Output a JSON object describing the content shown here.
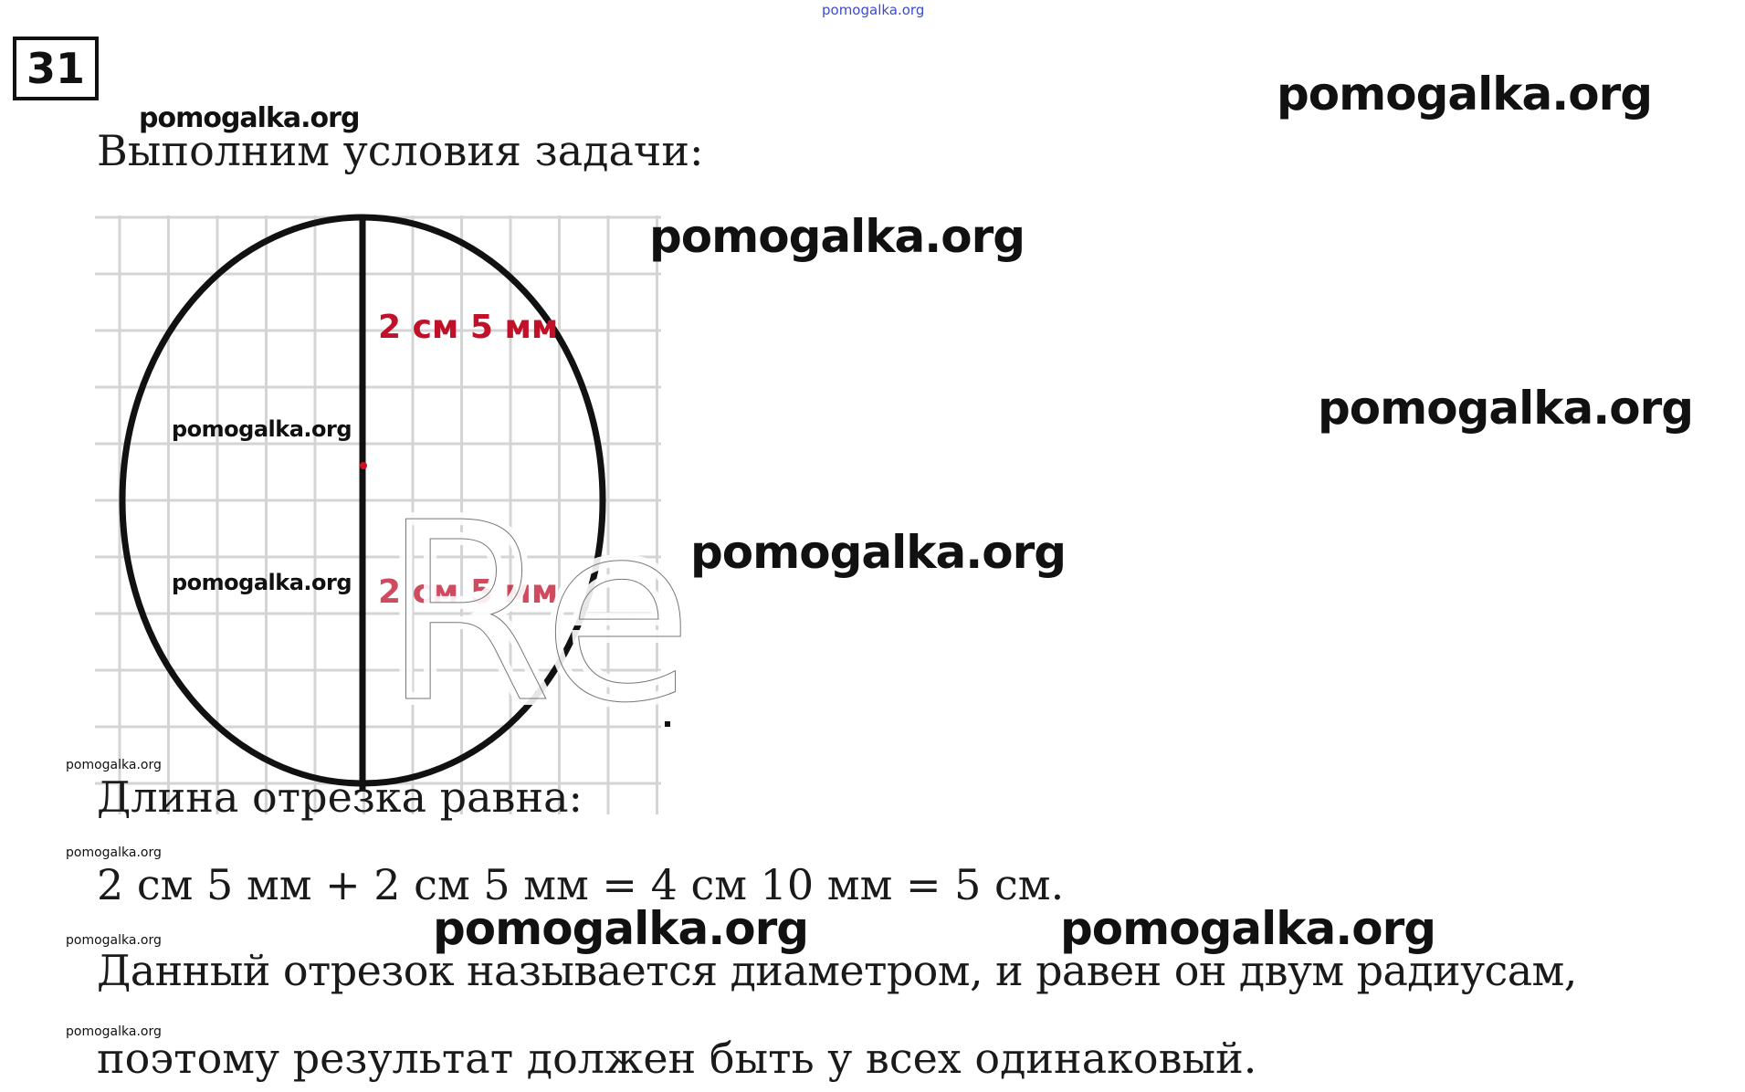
{
  "task_number": "31",
  "watermark": "pomogalka.org",
  "watermark_overlay": "Re",
  "heading": "Выполним условия задачи:",
  "figure": {
    "upper_label": "2 см 5 мм",
    "lower_label": "2 см 5 мм",
    "label_color": "#c0102a",
    "center_dot_color": "#d01020"
  },
  "lines": [
    "Длина отрезка равна:",
    "2 см 5 мм + 2 см 5 мм = 4 см 10 мм = 5 см.",
    "Данный отрезок называется диаметром, и равен он двум радиусам,",
    "поэтому результат должен быть у всех одинаковый."
  ]
}
